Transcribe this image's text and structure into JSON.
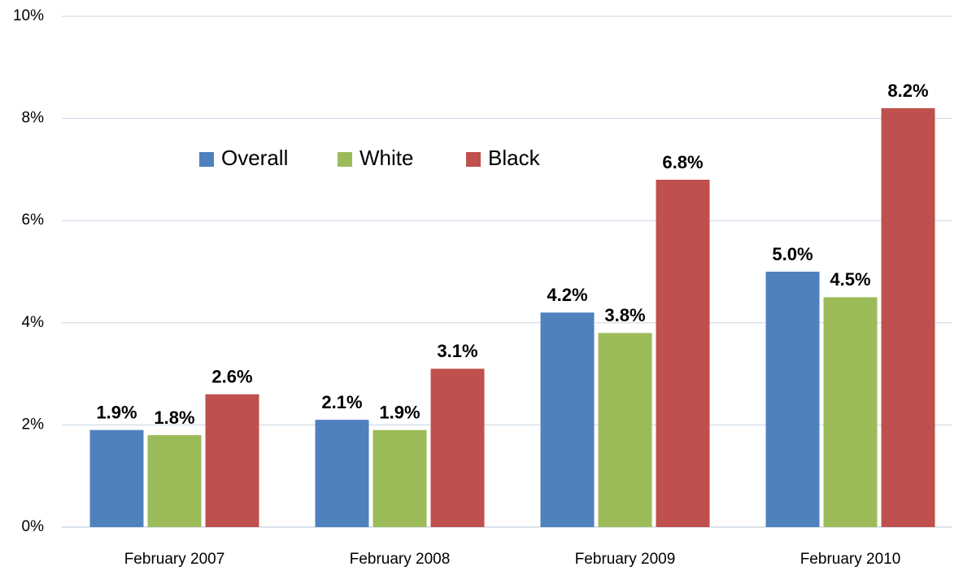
{
  "chart_data": {
    "type": "bar",
    "categories": [
      "February 2007",
      "February 2008",
      "February 2009",
      "February 2010"
    ],
    "series": [
      {
        "name": "Overall",
        "color": "#4f81bd",
        "values": [
          1.9,
          2.1,
          4.2,
          5.0
        ],
        "value_labels": [
          "1.9%",
          "2.1%",
          "4.2%",
          "5.0%"
        ]
      },
      {
        "name": "White",
        "color": "#9bbb59",
        "values": [
          1.8,
          1.9,
          3.8,
          4.5
        ],
        "value_labels": [
          "1.8%",
          "1.9%",
          "3.8%",
          "4.5%"
        ]
      },
      {
        "name": "Black",
        "color": "#c0504d",
        "values": [
          2.6,
          3.1,
          6.8,
          8.2
        ],
        "value_labels": [
          "2.6%",
          "3.1%",
          "6.8%",
          "8.2%"
        ]
      }
    ],
    "ylim": [
      0,
      10
    ],
    "yticks": [
      {
        "value": 0,
        "label": "0%"
      },
      {
        "value": 2,
        "label": "2%"
      },
      {
        "value": 4,
        "label": "4%"
      },
      {
        "value": 6,
        "label": "6%"
      },
      {
        "value": 8,
        "label": "8%"
      },
      {
        "value": 10,
        "label": "10%"
      }
    ],
    "grid": true,
    "legend": "top-left"
  }
}
